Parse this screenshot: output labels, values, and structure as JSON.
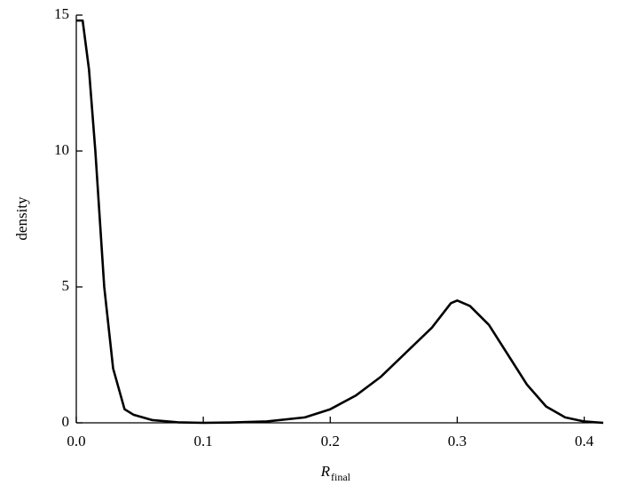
{
  "chart_data": {
    "type": "line",
    "x_label": {
      "main": "R",
      "subscript": "final"
    },
    "y_label": "density",
    "x": [
      0,
      0.005,
      0.01,
      0.015,
      0.022,
      0.029,
      0.038,
      0.045,
      0.06,
      0.08,
      0.1,
      0.12,
      0.15,
      0.18,
      0.2,
      0.22,
      0.24,
      0.26,
      0.28,
      0.295,
      0.3,
      0.31,
      0.325,
      0.34,
      0.355,
      0.37,
      0.385,
      0.4,
      0.415
    ],
    "series": [
      {
        "color": "#000000",
        "values": [
          14.8,
          14.8,
          13.0,
          10.0,
          5.0,
          2.0,
          0.5,
          0.3,
          0.1,
          0.02,
          0,
          0.01,
          0.05,
          0.2,
          0.5,
          1.0,
          1.7,
          2.6,
          3.5,
          4.4,
          4.5,
          4.3,
          3.6,
          2.5,
          1.4,
          0.6,
          0.2,
          0.05,
          0
        ]
      }
    ],
    "xlim": [
      0,
      0.415
    ],
    "ylim": [
      0,
      15
    ],
    "xticks": [
      {
        "value": 0,
        "label": "0.0"
      },
      0.1,
      0.2,
      0.3,
      0.4
    ],
    "yticks": [
      0,
      5,
      10,
      15
    ]
  }
}
